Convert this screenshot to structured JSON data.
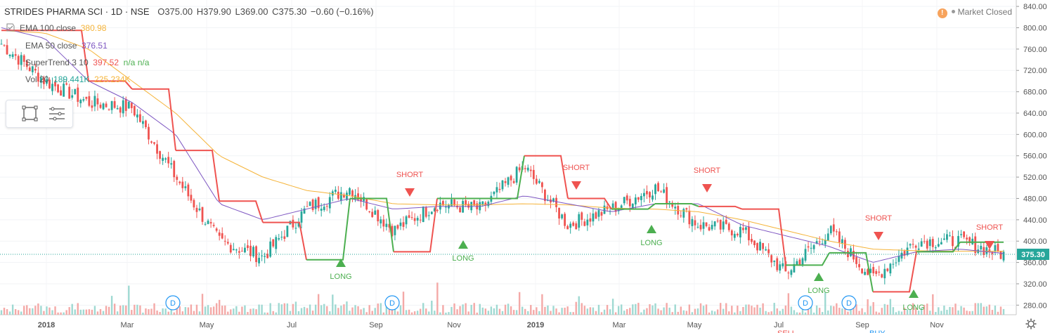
{
  "header": {
    "symbol": "STRIDES PHARMA SCI · 1D · NSE",
    "open": "O375.00",
    "high": "H379.90",
    "low": "L369.00",
    "close": "C375.30",
    "change": "−0.60 (−0.16%)",
    "market_status": "Market Closed",
    "colors": {
      "up": "#26a69a",
      "down": "#ef5350",
      "text": "#4a4a4a"
    }
  },
  "indicators": [
    {
      "name": "EMA 100 close",
      "value": "380.98",
      "color": "#f5b43a"
    },
    {
      "name": "EMA 50 close",
      "value": "376.51",
      "color": "#7e57c2"
    },
    {
      "name": "SuperTrend 3 10",
      "value": "397.52",
      "extra": "n/a n/a",
      "color": "#ef5350",
      "extra_color": "#4caf50"
    },
    {
      "name": "Vol 20",
      "value": "189.441K",
      "extra": "225.234K",
      "color": "#26a69a",
      "extra_color": "#f5b43a"
    }
  ],
  "chart_data": {
    "type": "candlestick",
    "price_axis_ticks": [
      280,
      320,
      360,
      400,
      440,
      480,
      520,
      560,
      600,
      640,
      680,
      720,
      760,
      800,
      840
    ],
    "ylim": [
      262,
      852
    ],
    "time_axis_labels": [
      "2018",
      "Mar",
      "May",
      "Jul",
      "Sep",
      "Nov",
      "2019",
      "Mar",
      "May",
      "Jul",
      "Sep",
      "Nov"
    ],
    "last_price_label": "375.30",
    "series": [
      {
        "name": "Price",
        "x": [
          "2018-01",
          "2018-02",
          "2018-03",
          "2018-04",
          "2018-05",
          "2018-06",
          "2018-07",
          "2018-08",
          "2018-09",
          "2018-10",
          "2018-11",
          "2018-12",
          "2019-01",
          "2019-02",
          "2019-03",
          "2019-04",
          "2019-05",
          "2019-06",
          "2019-07",
          "2019-08",
          "2019-09",
          "2019-10",
          "2019-11",
          "2019-12"
        ],
        "values": [
          770,
          700,
          660,
          650,
          520,
          400,
          370,
          460,
          500,
          420,
          470,
          460,
          540,
          430,
          460,
          500,
          430,
          420,
          340,
          420,
          330,
          400,
          400,
          375
        ]
      },
      {
        "name": "EMA 100 close",
        "values": [
          795,
          790,
          760,
          700,
          640,
          560,
          520,
          495,
          485,
          470,
          468,
          468,
          470,
          468,
          462,
          460,
          455,
          440,
          420,
          400,
          385,
          382,
          381,
          381
        ]
      },
      {
        "name": "EMA 50 close",
        "values": [
          800,
          780,
          700,
          660,
          600,
          470,
          440,
          460,
          480,
          460,
          465,
          465,
          485,
          470,
          455,
          470,
          470,
          430,
          410,
          390,
          360,
          380,
          385,
          377
        ]
      },
      {
        "name": "SuperTrend 3 10",
        "values": [
          795,
          795,
          700,
          685,
          570,
          475,
          435,
          365,
          480,
          380,
          480,
          480,
          560,
          480,
          460,
          470,
          465,
          460,
          355,
          378,
          305,
          380,
          398,
          398
        ]
      }
    ],
    "signals": [
      {
        "type": "SHORT",
        "date": "2018-09"
      },
      {
        "type": "SHORT",
        "date": "2019-01"
      },
      {
        "type": "SHORT",
        "date": "2019-05"
      },
      {
        "type": "SHORT",
        "date": "2019-09"
      },
      {
        "type": "SHORT",
        "date": "2019-12"
      },
      {
        "type": "LONG",
        "date": "2018-08"
      },
      {
        "type": "LONG",
        "date": "2018-11"
      },
      {
        "type": "LONG",
        "date": "2019-04"
      },
      {
        "type": "LONG",
        "date": "2019-08"
      },
      {
        "type": "LONG",
        "date": "2019-10"
      }
    ],
    "events": [
      "D",
      "D",
      "D",
      "D"
    ],
    "sell_partial": "SELL",
    "buy_partial": "BUY"
  }
}
